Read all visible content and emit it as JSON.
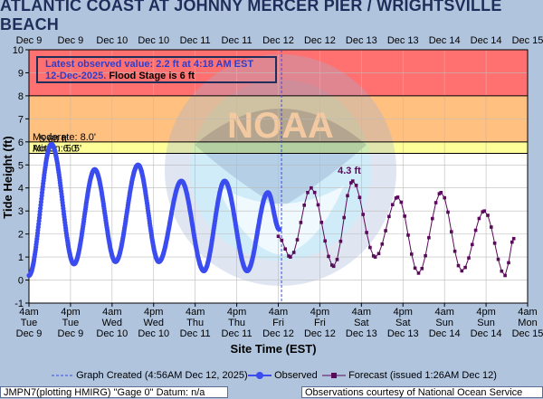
{
  "title": "ATLANTIC COAST AT JOHNNY MERCER PIER / WRIGHTSVILLE BEACH",
  "note": {
    "line1": "Latest observed value: 2.2 ft at 4:18 AM EST",
    "line2a": "12-Dec-2025.",
    "line2b": " Flood Stage is 6 ft"
  },
  "top_axis_labels": [
    "Dec 9",
    "Dec 9",
    "Dec 10",
    "Dec 10",
    "Dec 11",
    "Dec 11",
    "Dec 12",
    "Dec 12",
    "Dec 13",
    "Dec 13",
    "Dec 14",
    "Dec 14",
    "Dec 15"
  ],
  "bottom_axis_labels": [
    {
      "time": "4am",
      "day": "Tue",
      "date": "Dec 9"
    },
    {
      "time": "4pm",
      "day": "Tue",
      "date": "Dec 9"
    },
    {
      "time": "4am",
      "day": "Wed",
      "date": "Dec 10"
    },
    {
      "time": "4pm",
      "day": "Wed",
      "date": "Dec 10"
    },
    {
      "time": "4am",
      "day": "Thu",
      "date": "Dec 11"
    },
    {
      "time": "4pm",
      "day": "Thu",
      "date": "Dec 11"
    },
    {
      "time": "4am",
      "day": "Fri",
      "date": "Dec 12"
    },
    {
      "time": "4pm",
      "day": "Fri",
      "date": "Dec 12"
    },
    {
      "time": "4am",
      "day": "Sat",
      "date": "Dec 13"
    },
    {
      "time": "4pm",
      "day": "Sat",
      "date": "Dec 13"
    },
    {
      "time": "4am",
      "day": "Sun",
      "date": "Dec 14"
    },
    {
      "time": "4pm",
      "day": "Sun",
      "date": "Dec 14"
    },
    {
      "time": "4am",
      "day": "Mon",
      "date": "Dec 15"
    }
  ],
  "legend": {
    "created": "Graph Created (4:56AM Dec 12, 2025)",
    "observed": "Observed",
    "forecast": "Forecast (issued 1:26AM Dec 12)"
  },
  "footer": {
    "left": "JMPN7(plotting HMIRG) \"Gage 0\" Datum: n/a",
    "right": "Observations courtesy of National Ocean Service"
  },
  "colors": {
    "observed": "#3b4cf0",
    "forecast": "#5a0a5a",
    "major": "#ff7070",
    "moderate": "#ffc080",
    "minor": "#ffff99",
    "action": "#ffffcc",
    "plot_bg": "#ffffff",
    "grid": "#bbbbbb",
    "page_bg": "#b0c4de"
  },
  "chart_data": {
    "type": "line",
    "xlabel": "Site Time (EST)",
    "ylabel": "Tide Height (ft)",
    "ylim": [
      -1,
      10
    ],
    "xlim": [
      "2025-12-09 04:00",
      "2025-12-15 04:00"
    ],
    "yticks": [
      -1,
      0,
      1,
      2,
      3,
      4,
      5,
      6,
      7,
      8,
      9,
      10
    ],
    "grid": true,
    "graph_created": "2025-12-12 04:56",
    "flood_categories": [
      {
        "name": "Major",
        "from": 8.0,
        "to": 10,
        "label": ""
      },
      {
        "name": "Moderate",
        "from": 6.0,
        "to": 8.0,
        "label": "Moderate: 8.0'"
      },
      {
        "name": "Minor",
        "from": 5.5,
        "to": 6.0,
        "label": "Minor: 6.0'"
      },
      {
        "name": "Action",
        "from": 5.5,
        "to": 5.5,
        "label": "Action: 5.5'"
      }
    ],
    "annotations": [
      {
        "text": "4.3 ft",
        "x": "2025-12-13 00:30",
        "y": 4.3
      },
      {
        "text": "5.68 ft",
        "x": "2025-12-09 11:00",
        "y": 5.68
      }
    ],
    "series": [
      {
        "name": "Observed",
        "style": "observed",
        "extrema": [
          [
            "2025-12-09 04:00",
            0.2
          ],
          [
            "2025-12-09 10:30",
            5.9
          ],
          [
            "2025-12-09 17:00",
            0.7
          ],
          [
            "2025-12-09 23:00",
            4.8
          ],
          [
            "2025-12-10 05:00",
            0.8
          ],
          [
            "2025-12-10 11:30",
            5.0
          ],
          [
            "2025-12-10 17:30",
            0.8
          ],
          [
            "2025-12-11 00:00",
            4.3
          ],
          [
            "2025-12-11 06:30",
            0.4
          ],
          [
            "2025-12-11 12:30",
            4.3
          ],
          [
            "2025-12-11 19:00",
            0.4
          ],
          [
            "2025-12-12 01:00",
            3.8
          ],
          [
            "2025-12-12 04:18",
            2.2
          ]
        ]
      },
      {
        "name": "Forecast (issued 1:26AM Dec 12)",
        "style": "forecast",
        "extrema": [
          [
            "2025-12-12 04:00",
            1.9
          ],
          [
            "2025-12-12 07:30",
            1.0
          ],
          [
            "2025-12-12 13:30",
            4.0
          ],
          [
            "2025-12-12 20:00",
            0.6
          ],
          [
            "2025-12-13 01:30",
            4.3
          ],
          [
            "2025-12-13 08:00",
            1.0
          ],
          [
            "2025-12-13 14:30",
            3.6
          ],
          [
            "2025-12-13 20:30",
            0.3
          ],
          [
            "2025-12-14 03:00",
            3.8
          ],
          [
            "2025-12-14 09:00",
            0.4
          ],
          [
            "2025-12-14 15:30",
            3.0
          ],
          [
            "2025-12-14 21:30",
            0.2
          ],
          [
            "2025-12-15 00:00",
            1.8
          ]
        ]
      }
    ]
  }
}
